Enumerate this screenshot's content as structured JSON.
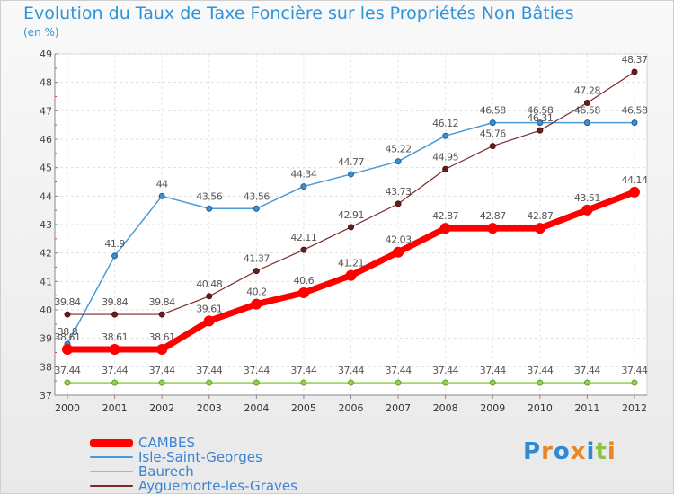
{
  "header": {
    "title": "Evolution du Taux de Taxe Foncière sur les Propriétés Non Bâties",
    "unit": "(en %)"
  },
  "logo": {
    "text": "Proxiti",
    "letter_colors": [
      "#2d8ad4",
      "#e8862a",
      "#2d8ad4",
      "#e8862a",
      "#2d8ad4",
      "#8cc63f",
      "#e8862a"
    ]
  },
  "chart_data": {
    "type": "line",
    "title": "Evolution du Taux de Taxe Foncière sur les Propriétés Non Bâties",
    "ylabel": "(en %)",
    "xlabel": "",
    "x": [
      "2000",
      "2001",
      "2002",
      "2003",
      "2004",
      "2005",
      "2006",
      "2007",
      "2008",
      "2009",
      "2010",
      "2011",
      "2012"
    ],
    "ylim": [
      37,
      49
    ],
    "yticks": [
      37,
      38,
      39,
      40,
      41,
      42,
      43,
      44,
      45,
      46,
      47,
      48,
      49
    ],
    "grid": true,
    "legend_position": "bottom-left",
    "series": [
      {
        "name": "CAMBES",
        "color": "#ff0000",
        "values": [
          38.61,
          38.61,
          38.61,
          39.61,
          40.2,
          40.6,
          41.21,
          42.03,
          42.87,
          42.87,
          42.87,
          43.51,
          44.14
        ],
        "labels": [
          "38.61",
          "38.61",
          "38.61",
          "39.61",
          "40.2",
          "40.6",
          "41.21",
          "42.03",
          "42.87",
          "42.87",
          "42.87",
          "43.51",
          "44.14"
        ]
      },
      {
        "name": "Isle-Saint-Georges",
        "color": "#4a9ad6",
        "values": [
          38.8,
          41.9,
          44,
          43.56,
          43.56,
          44.34,
          44.77,
          45.22,
          46.12,
          46.58,
          46.58,
          46.58,
          46.58
        ],
        "labels": [
          "38.8",
          "41.9",
          "44",
          "43.56",
          "43.56",
          "44.34",
          "44.77",
          "45.22",
          "46.12",
          "46.58",
          "46.58",
          "46.58",
          "46.58"
        ]
      },
      {
        "name": "Baurech",
        "color": "#8fd44a",
        "values": [
          37.44,
          37.44,
          37.44,
          37.44,
          37.44,
          37.44,
          37.44,
          37.44,
          37.44,
          37.44,
          37.44,
          37.44,
          37.44
        ],
        "labels": [
          "37.44",
          "37.44",
          "37.44",
          "37.44",
          "37.44",
          "37.44",
          "37.44",
          "37.44",
          "37.44",
          "37.44",
          "37.44",
          "37.44",
          "37.44"
        ]
      },
      {
        "name": "Ayguemorte-les-Graves",
        "color": "#7b2a2a",
        "values": [
          39.84,
          39.84,
          39.84,
          40.48,
          41.37,
          42.11,
          42.91,
          43.73,
          44.95,
          45.76,
          46.31,
          47.28,
          48.37
        ],
        "labels": [
          "39.84",
          "39.84",
          "39.84",
          "40.48",
          "41.37",
          "42.11",
          "42.91",
          "43.73",
          "44.95",
          "45.76",
          "46.31",
          "47.28",
          "48.37"
        ]
      }
    ]
  }
}
